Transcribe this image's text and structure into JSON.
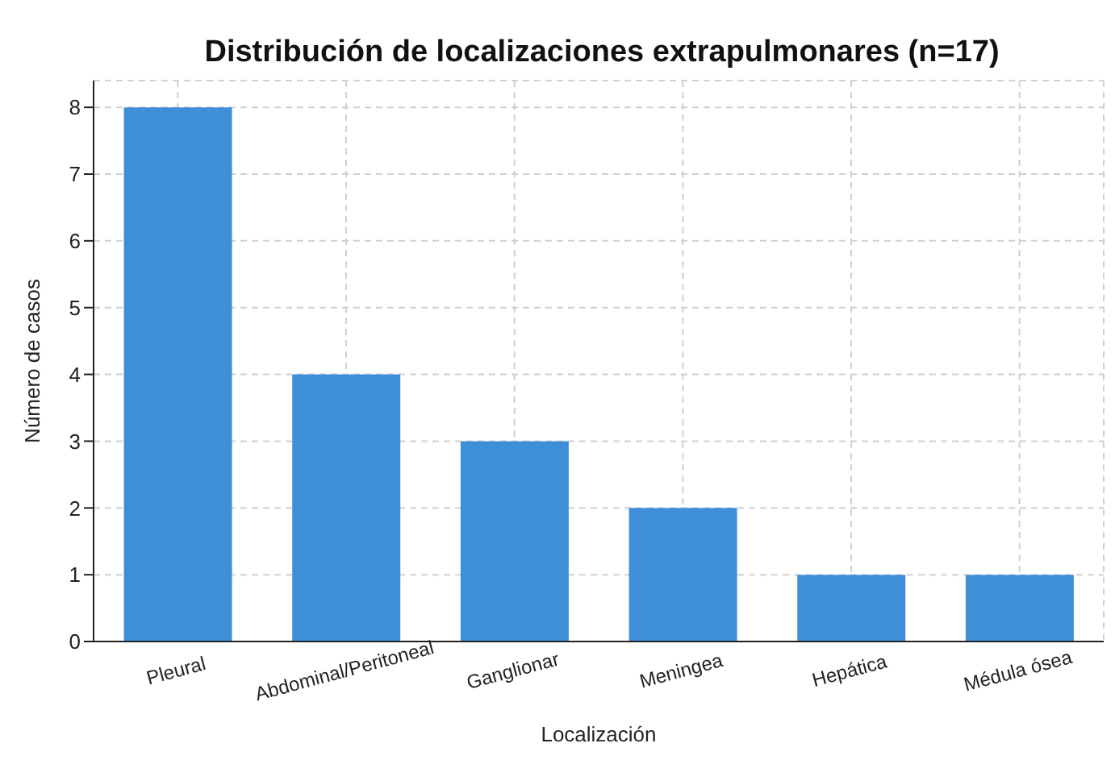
{
  "chart_data": {
    "type": "bar",
    "title": "Distribución de localizaciones extrapulmonares (n=17)",
    "xlabel": "Localización",
    "ylabel": "Número de casos",
    "categories": [
      "Pleural",
      "Abdominal/Peritoneal",
      "Ganglionar",
      "Meningea",
      "Hepática",
      "Médula ósea"
    ],
    "values": [
      8,
      4,
      3,
      2,
      1,
      1
    ],
    "color": "#3f8fd8",
    "ylim": [
      0,
      8.4
    ],
    "yticks": [
      0,
      1,
      2,
      3,
      4,
      5,
      6,
      7,
      8
    ],
    "grid": true
  }
}
